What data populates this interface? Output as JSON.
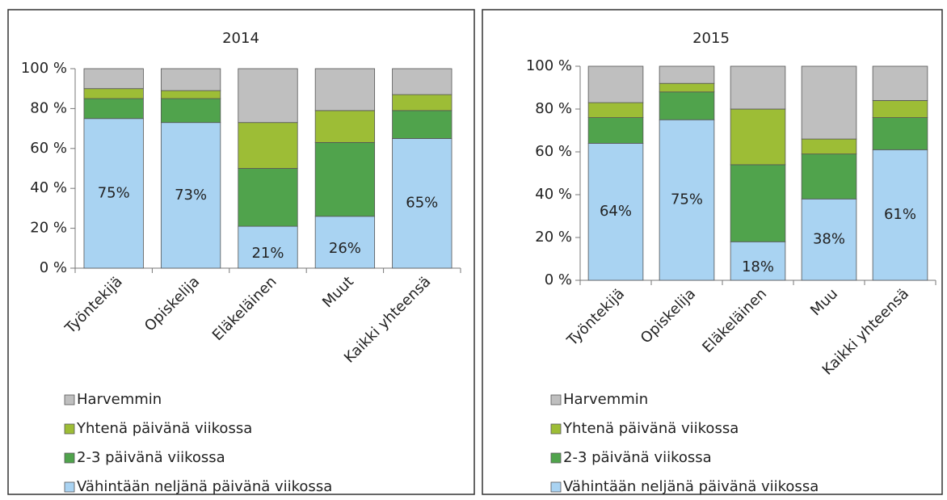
{
  "chart_data": [
    {
      "type": "stacked_bar",
      "title": "2014",
      "categories": [
        "Työntekijä",
        "Opiskelija",
        "Eläkeläinen",
        "Muut",
        "Kaikki yhteensä"
      ],
      "series": [
        {
          "name": "Vähintään neljänä päivänä viikossa",
          "color": "#a9d3f2",
          "values": [
            75,
            73,
            21,
            26,
            65
          ],
          "value_labels": [
            "75%",
            "73%",
            "21%",
            "26%",
            "65%"
          ]
        },
        {
          "name": "2-3 päivänä viikossa",
          "color": "#50a34c",
          "values": [
            10,
            12,
            29,
            37,
            14
          ]
        },
        {
          "name": "Yhtenä päivänä viikossa",
          "color": "#9dbd36",
          "values": [
            5,
            4,
            23,
            16,
            8
          ]
        },
        {
          "name": "Harvemmin",
          "color": "#bfbfbf",
          "values": [
            10,
            11,
            27,
            21,
            13
          ]
        }
      ],
      "ylim": [
        0,
        100
      ],
      "yticks": [
        {
          "value": 0,
          "label": "0 %"
        },
        {
          "value": 20,
          "label": "20 %"
        },
        {
          "value": 40,
          "label": "40 %"
        },
        {
          "value": 60,
          "label": "60 %"
        },
        {
          "value": 80,
          "label": "80 %"
        },
        {
          "value": 100,
          "label": "100 %"
        }
      ],
      "legend": "bottom"
    },
    {
      "type": "stacked_bar",
      "title": "2015",
      "categories": [
        "Työntekijä",
        "Opiskelija",
        "Eläkeläinen",
        "Muu",
        "Kaikki yhteensä"
      ],
      "series": [
        {
          "name": "Vähintään neljänä päivänä viikossa",
          "color": "#a9d3f2",
          "values": [
            64,
            75,
            18,
            38,
            61
          ],
          "value_labels": [
            "64%",
            "75%",
            "18%",
            "38%",
            "61%"
          ]
        },
        {
          "name": "2-3 päivänä viikossa",
          "color": "#50a34c",
          "values": [
            12,
            13,
            36,
            21,
            15
          ]
        },
        {
          "name": "Yhtenä päivänä viikossa",
          "color": "#9dbd36",
          "values": [
            7,
            4,
            26,
            7,
            8
          ]
        },
        {
          "name": "Harvemmin",
          "color": "#bfbfbf",
          "values": [
            17,
            8,
            20,
            34,
            16
          ]
        }
      ],
      "ylim": [
        0,
        100
      ],
      "yticks": [
        {
          "value": 0,
          "label": "0 %"
        },
        {
          "value": 20,
          "label": "20 %"
        },
        {
          "value": 40,
          "label": "40 %"
        },
        {
          "value": 60,
          "label": "60 %"
        },
        {
          "value": 80,
          "label": "80 %"
        },
        {
          "value": 100,
          "label": "100 %"
        }
      ],
      "legend": "bottom"
    }
  ]
}
